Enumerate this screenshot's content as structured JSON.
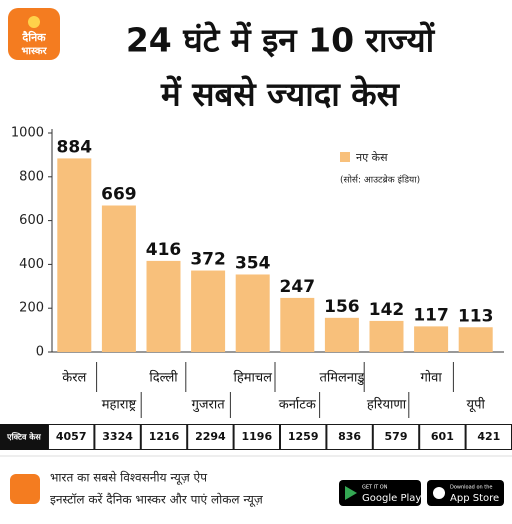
{
  "logo": [
    "दैनिक",
    "भास्कर"
  ],
  "chart_data": {
    "type": "bar",
    "title": [
      "24 घंटे में इन 10 राज्यों",
      "में सबसे ज्यादा केस"
    ],
    "categories": [
      "केरल",
      "महाराष्ट्र",
      "दिल्ली",
      "गुजरात",
      "हिमाचल",
      "कर्नाटक",
      "तमिलनाडु",
      "हरियाणा",
      "गोवा",
      "यूपी"
    ],
    "series": [
      {
        "name": "नए केस",
        "color": "#f8c07b",
        "values": [
          884,
          669,
          416,
          372,
          354,
          247,
          156,
          142,
          117,
          113
        ]
      }
    ],
    "source": "(सोर्स: आउटब्रेक इंडिया)",
    "ylim": [
      0,
      1000
    ],
    "yticks": [
      0,
      200,
      400,
      600,
      800,
      1000
    ]
  },
  "active_cases": {
    "label": "एक्टिव केस",
    "values": [
      4057,
      3324,
      1216,
      2294,
      1196,
      1259,
      836,
      579,
      601,
      421
    ]
  },
  "footer": {
    "line1": "भारत का सबसे विश्वसनीय न्यूज़ ऐप",
    "line2": "इनस्टॉल करें दैनिक भास्कर और पाएं लोकल न्यूज़",
    "google_play": {
      "small": "GET IT ON",
      "big": "Google Play"
    },
    "app_store": {
      "small": "Download on the",
      "big": "App Store"
    }
  }
}
